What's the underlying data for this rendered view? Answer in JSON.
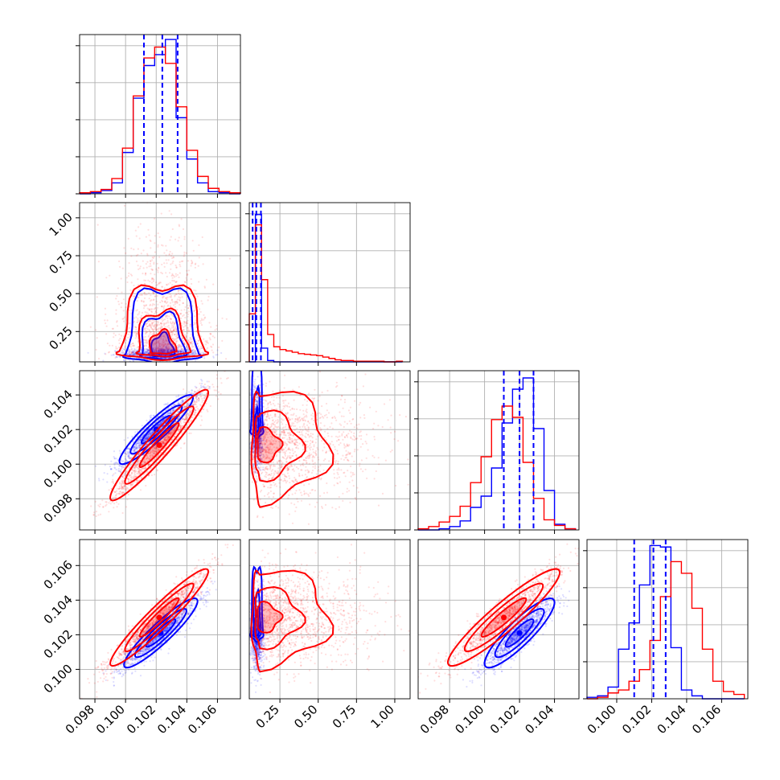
{
  "chart_data": {
    "type": "corner",
    "title": "",
    "grid": true,
    "colors": {
      "series_a": "#ff0000",
      "series_b": "#0000ff"
    },
    "parameters": [
      {
        "range": [
          0.097,
          0.1075
        ],
        "ticks": [
          "0.098",
          "0.100",
          "0.102",
          "0.104",
          "0.106"
        ],
        "tick_values": [
          0.098,
          0.1,
          0.102,
          0.104,
          0.106
        ]
      },
      {
        "range": [
          0.05,
          1.1
        ],
        "ticks": [
          "0.25",
          "0.50",
          "0.75",
          "1.00"
        ],
        "tick_values": [
          0.25,
          0.5,
          0.75,
          1.0
        ]
      },
      {
        "range": [
          0.0962,
          0.1054
        ],
        "ticks": [
          "0.098",
          "0.100",
          "0.102",
          "0.104"
        ],
        "tick_values": [
          0.098,
          0.1,
          0.102,
          0.104
        ]
      },
      {
        "range": [
          0.0983,
          0.1075
        ],
        "ticks": [
          "0.100",
          "0.102",
          "0.104",
          "0.106"
        ],
        "tick_values": [
          0.1,
          0.102,
          0.104,
          0.106
        ]
      }
    ],
    "marginals": [
      {
        "bins": [
          0.097,
          0.0977,
          0.0984,
          0.0991,
          0.0998,
          0.1005,
          0.1012,
          0.1019,
          0.1026,
          0.1033,
          0.104,
          0.1047,
          0.1054,
          0.1061,
          0.1068,
          0.1075
        ],
        "series_a": [
          1,
          2,
          4,
          14,
          42,
          90,
          125,
          135,
          120,
          80,
          40,
          16,
          5,
          2,
          1
        ],
        "series_b": [
          0,
          1,
          3,
          10,
          38,
          88,
          118,
          128,
          142,
          70,
          32,
          10,
          2,
          1,
          0
        ],
        "quantiles_b": [
          0.1012,
          0.1024,
          0.1034
        ],
        "ymax": 145
      },
      {
        "bins": [
          0.05,
          0.09,
          0.13,
          0.17,
          0.21,
          0.25,
          0.29,
          0.33,
          0.37,
          0.41,
          0.45,
          0.49,
          0.53,
          0.57,
          0.61,
          0.65,
          0.69,
          0.73,
          0.77,
          0.81,
          0.85,
          0.89,
          0.93,
          0.97,
          1.01,
          1.05
        ],
        "series_a": [
          70,
          200,
          120,
          40,
          22,
          18,
          16,
          14,
          12,
          11,
          10,
          9,
          7,
          5,
          3,
          2,
          2,
          1,
          1,
          1,
          1,
          1,
          0,
          0,
          1
        ],
        "series_b": [
          0,
          215,
          20,
          2,
          0,
          0,
          0,
          0,
          0,
          0,
          0,
          0,
          0,
          0,
          0,
          0,
          0,
          0,
          0,
          0,
          0,
          0,
          0,
          0,
          0
        ],
        "quantiles_b": [
          0.072,
          0.096,
          0.126
        ],
        "ymax": 230
      },
      {
        "bins": [
          0.0962,
          0.0968,
          0.0974,
          0.098,
          0.0986,
          0.0992,
          0.0998,
          0.1004,
          0.101,
          0.1016,
          0.1022,
          0.1028,
          0.1034,
          0.104,
          0.1046,
          0.1052
        ],
        "series_a": [
          1,
          3,
          7,
          12,
          21,
          42,
          65,
          98,
          110,
          100,
          60,
          28,
          9,
          4,
          1
        ],
        "series_b": [
          0,
          0,
          1,
          3,
          8,
          20,
          30,
          55,
          95,
          125,
          135,
          90,
          35,
          5,
          1
        ],
        "quantiles_b": [
          0.1011,
          0.102,
          0.1028
        ],
        "ymax": 140
      },
      {
        "bins": [
          0.0983,
          0.0989,
          0.0995,
          0.1001,
          0.1007,
          0.1013,
          0.1019,
          0.1025,
          0.1031,
          0.1037,
          0.1043,
          0.1049,
          0.1055,
          0.1061,
          0.1067,
          0.1073
        ],
        "series_a": [
          0,
          1,
          4,
          6,
          12,
          20,
          40,
          70,
          94,
          86,
          62,
          34,
          12,
          5,
          3
        ],
        "series_b": [
          1,
          2,
          8,
          34,
          52,
          78,
          105,
          104,
          35,
          6,
          2,
          0,
          0,
          0,
          0
        ],
        "quantiles_b": [
          0.101,
          0.1021,
          0.1028
        ],
        "ymax": 108
      }
    ],
    "joint": [
      {
        "row": 1,
        "col": 0,
        "series_a": {
          "center": [
            0.1024,
            0.2
          ],
          "sd": [
            0.0014,
            0.16
          ],
          "corr": 0.0,
          "skew": "up"
        },
        "series_b": {
          "center": [
            0.1024,
            0.1
          ],
          "sd": [
            0.0012,
            0.02
          ],
          "corr": 0.0
        }
      },
      {
        "row": 2,
        "col": 0,
        "series_a": {
          "center": [
            0.1022,
            0.1011
          ],
          "sd": [
            0.0016,
            0.0016
          ],
          "corr": 0.95
        },
        "series_b": {
          "center": [
            0.102,
            0.102
          ],
          "sd": [
            0.0012,
            0.001
          ],
          "corr": 0.92
        }
      },
      {
        "row": 2,
        "col": 1,
        "series_a": {
          "center": [
            0.2,
            0.1011
          ],
          "sd": [
            0.16,
            0.0016
          ],
          "corr": -0.2,
          "skew": "right"
        },
        "series_b": {
          "center": [
            0.1,
            0.102
          ],
          "sd": [
            0.02,
            0.001
          ],
          "corr": 0.0
        }
      },
      {
        "row": 3,
        "col": 0,
        "series_a": {
          "center": [
            0.1022,
            0.103
          ],
          "sd": [
            0.0016,
            0.0014
          ],
          "corr": 0.95
        },
        "series_b": {
          "center": [
            0.1023,
            0.1021
          ],
          "sd": [
            0.0012,
            0.001
          ],
          "corr": 0.92
        }
      },
      {
        "row": 3,
        "col": 1,
        "series_a": {
          "center": [
            0.2,
            0.103
          ],
          "sd": [
            0.16,
            0.0014
          ],
          "corr": -0.2,
          "skew": "right"
        },
        "series_b": {
          "center": [
            0.1,
            0.1021
          ],
          "sd": [
            0.02,
            0.001
          ],
          "corr": 0.0
        }
      },
      {
        "row": 3,
        "col": 2,
        "series_a": {
          "center": [
            0.1011,
            0.103
          ],
          "sd": [
            0.0016,
            0.0014
          ],
          "corr": 0.93
        },
        "series_b": {
          "center": [
            0.102,
            0.1021
          ],
          "sd": [
            0.001,
            0.001
          ],
          "corr": 0.88
        }
      }
    ]
  }
}
